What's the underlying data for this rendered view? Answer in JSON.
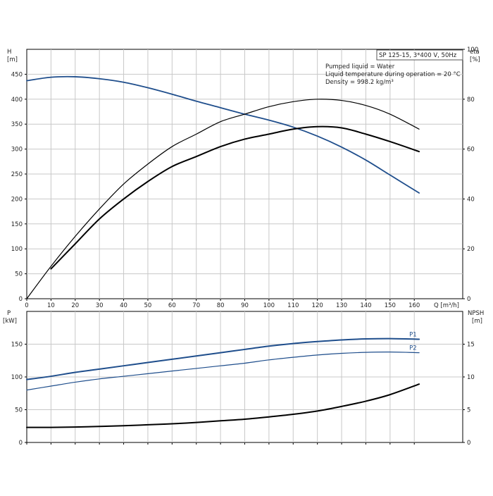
{
  "chart_data": [
    {
      "type": "line",
      "panel": "top",
      "title": "SP 125-15, 3*400 V, 50Hz",
      "notes": [
        "Pumped liquid = Water",
        "Liquid temperature during operation = 20 °C",
        "Density = 998.2 kg/m³"
      ],
      "xlabel": "Q [m³/h]",
      "xlim": [
        0,
        180
      ],
      "xticks": [
        0,
        10,
        20,
        30,
        40,
        50,
        60,
        70,
        80,
        90,
        100,
        110,
        120,
        130,
        140,
        150,
        160
      ],
      "ylabel_left": {
        "name": "H",
        "unit": "[m]"
      },
      "ylim_left": [
        0,
        500
      ],
      "yticks_left": [
        0,
        50,
        100,
        150,
        200,
        250,
        300,
        350,
        400,
        450
      ],
      "ylabel_right": {
        "name": "eta",
        "unit": "[%]"
      },
      "ylim_right": [
        0,
        100
      ],
      "yticks_right": [
        0,
        20,
        40,
        60,
        80,
        100
      ],
      "grid": true,
      "series": [
        {
          "color": "#1f4e8c",
          "axis": "left",
          "x": [
            0,
            10,
            20,
            30,
            40,
            50,
            60,
            70,
            80,
            90,
            100,
            110,
            120,
            130,
            140,
            150,
            162
          ],
          "y": [
            437,
            444,
            445,
            441,
            434,
            423,
            410,
            396,
            383,
            370,
            358,
            344,
            326,
            304,
            278,
            248,
            212
          ]
        },
        {
          "color": "#000000",
          "axis": "right",
          "x": [
            0,
            10,
            20,
            30,
            40,
            50,
            60,
            70,
            80,
            90,
            100,
            110,
            120,
            130,
            140,
            150,
            162
          ],
          "y": [
            0,
            13,
            25,
            36,
            46,
            54,
            61,
            66,
            71,
            74,
            77,
            79,
            80,
            79.5,
            77.5,
            74,
            68
          ]
        },
        {
          "color": "#000000",
          "axis": "right",
          "x": [
            10,
            20,
            30,
            40,
            50,
            60,
            70,
            80,
            90,
            100,
            110,
            120,
            130,
            140,
            150,
            162
          ],
          "y": [
            12,
            22,
            32,
            40,
            47,
            53,
            57,
            61,
            64,
            66,
            68,
            69,
            68.5,
            66,
            63,
            59
          ]
        }
      ]
    },
    {
      "type": "line",
      "panel": "bottom",
      "xlim": [
        0,
        180
      ],
      "ylabel_left": {
        "name": "P",
        "unit": "[kW]"
      },
      "ylim_left": [
        0,
        200
      ],
      "yticks_left": [
        0,
        50,
        100,
        150
      ],
      "ylabel_right": {
        "name": "NPSH",
        "unit": "[m]"
      },
      "ylim_right": [
        0,
        20
      ],
      "yticks_right": [
        0,
        5,
        10,
        15
      ],
      "grid": true,
      "series": [
        {
          "name": "P1",
          "color": "#1f4e8c",
          "axis": "left",
          "x": [
            0,
            10,
            20,
            30,
            40,
            50,
            60,
            70,
            80,
            90,
            100,
            110,
            120,
            130,
            140,
            150,
            162
          ],
          "y": [
            96,
            101,
            107,
            112,
            117,
            122,
            127,
            132,
            137,
            142,
            147,
            151,
            154,
            156.5,
            158,
            158.5,
            157.5
          ]
        },
        {
          "name": "P2",
          "color": "#1f4e8c",
          "axis": "left",
          "x": [
            0,
            10,
            20,
            30,
            40,
            50,
            60,
            70,
            80,
            90,
            100,
            110,
            120,
            130,
            140,
            150,
            162
          ],
          "y": [
            80,
            86,
            92,
            97,
            101,
            105,
            109,
            113,
            117,
            121,
            126,
            130,
            133.5,
            136,
            137.5,
            138,
            137
          ]
        },
        {
          "color": "#000000",
          "axis": "right",
          "x": [
            0,
            10,
            20,
            30,
            40,
            50,
            60,
            70,
            80,
            90,
            100,
            110,
            120,
            130,
            140,
            150,
            162
          ],
          "y": [
            2.3,
            2.3,
            2.35,
            2.45,
            2.55,
            2.7,
            2.85,
            3.05,
            3.3,
            3.55,
            3.9,
            4.3,
            4.8,
            5.5,
            6.3,
            7.3,
            8.9
          ]
        }
      ]
    }
  ]
}
